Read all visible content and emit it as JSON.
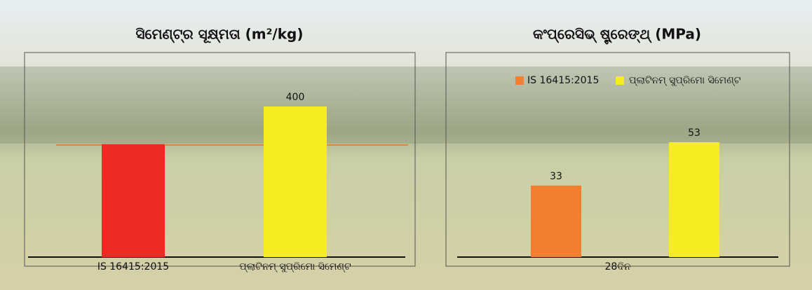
{
  "chart_data": [
    {
      "type": "bar",
      "title": "ସିମେଣ୍ଟ୍‌ର ସୂକ୍ଷ୍ମତା (m²/kg)",
      "categories": [
        "IS 16415:2015",
        "ପ୍ଲାଟିନମ୍ ସୁପ୍ରିମୋ ସିମେଣ୍ଟ"
      ],
      "values": [
        300,
        400
      ],
      "value_labels": [
        null,
        "400"
      ],
      "colors": [
        "#ee2a24",
        "#f7ec1f"
      ]
    },
    {
      "type": "grouped-bar",
      "title": "କଂପ୍ରେସିଭ୍ ଷ୍ଟ୍ରେଙ୍ଥ୍ (MPa)",
      "categories": [
        "28ଦିନ"
      ],
      "series": [
        {
          "name": "IS 16415:2015",
          "color": "#f08030",
          "values": [
            33
          ]
        },
        {
          "name": "ପ୍ଲାଟିନମ୍ ସୁପ୍ରିମୋ ସିମେଣ୍ଟ",
          "color": "#f7ec1f",
          "values": [
            53
          ]
        }
      ]
    }
  ]
}
